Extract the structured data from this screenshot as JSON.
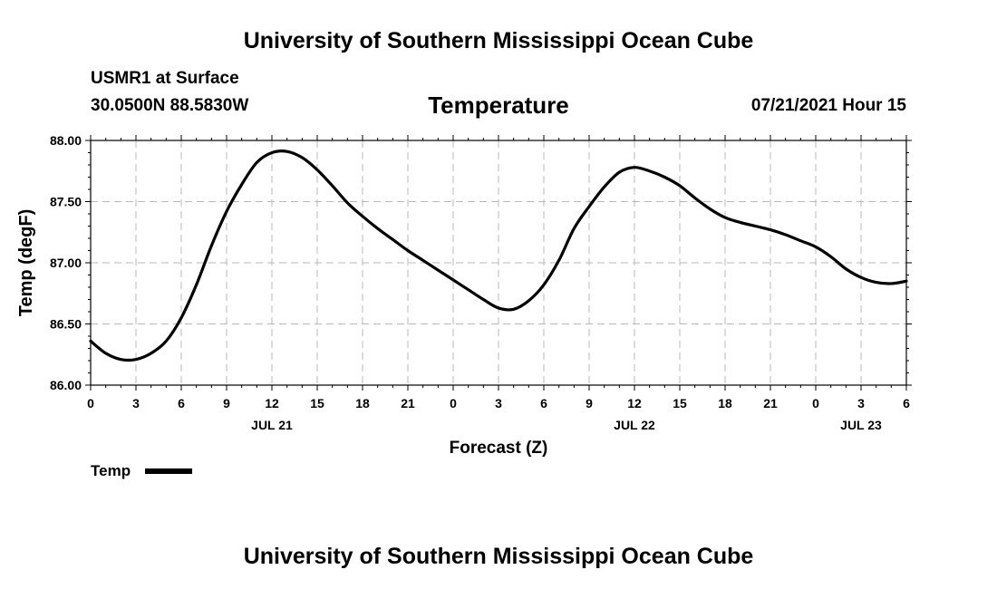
{
  "header": {
    "title": "University of Southern Mississippi Ocean Cube",
    "station": "USMR1 at Surface",
    "location": "30.0500N  88.5830W",
    "datetime": "07/21/2021 Hour 15"
  },
  "footer": {
    "title": "University of Southern Mississippi Ocean Cube"
  },
  "chart_data": {
    "type": "line",
    "title": "Temperature",
    "xlabel": "Forecast (Z)",
    "ylabel": "Temp (degF)",
    "ylim": [
      86.0,
      88.0
    ],
    "xlim": [
      0,
      54
    ],
    "grid": true,
    "yticks": [
      86.0,
      86.5,
      87.0,
      87.5,
      88.0
    ],
    "ytick_labels": [
      "86.00",
      "86.50",
      "87.00",
      "87.50",
      "88.00"
    ],
    "xtick_labels": [
      "0",
      "3",
      "6",
      "9",
      "12",
      "15",
      "18",
      "21",
      "0",
      "3",
      "6",
      "9",
      "12",
      "15",
      "18",
      "21",
      "0",
      "3",
      "6"
    ],
    "date_labels": [
      {
        "hour": 12,
        "label": "JUL 21"
      },
      {
        "hour": 36,
        "label": "JUL 22"
      },
      {
        "hour": 51,
        "label": "JUL 23"
      }
    ],
    "legend": {
      "position": "bottom-left",
      "entries": [
        "Temp"
      ]
    },
    "series": [
      {
        "name": "Temp",
        "x": [
          0,
          1,
          2,
          3,
          4,
          5,
          6,
          7,
          8,
          9,
          10,
          11,
          12,
          13,
          14,
          15,
          16,
          17,
          18,
          19,
          20,
          21,
          22,
          23,
          24,
          25,
          26,
          27,
          28,
          29,
          30,
          31,
          32,
          33,
          34,
          35,
          36,
          37,
          38,
          39,
          40,
          41,
          42,
          43,
          44,
          45,
          46,
          47,
          48,
          49,
          50,
          51,
          52,
          53,
          54
        ],
        "values": [
          86.36,
          86.26,
          86.21,
          86.21,
          86.26,
          86.36,
          86.55,
          86.82,
          87.14,
          87.42,
          87.64,
          87.82,
          87.9,
          87.91,
          87.86,
          87.76,
          87.63,
          87.49,
          87.38,
          87.28,
          87.19,
          87.1,
          87.02,
          86.94,
          86.86,
          86.78,
          86.7,
          86.63,
          86.62,
          86.69,
          86.82,
          87.02,
          87.28,
          87.46,
          87.62,
          87.74,
          87.78,
          87.75,
          87.7,
          87.63,
          87.53,
          87.44,
          87.37,
          87.33,
          87.3,
          87.27,
          87.23,
          87.18,
          87.13,
          87.05,
          86.95,
          86.88,
          86.84,
          86.83,
          86.85
        ]
      }
    ]
  }
}
